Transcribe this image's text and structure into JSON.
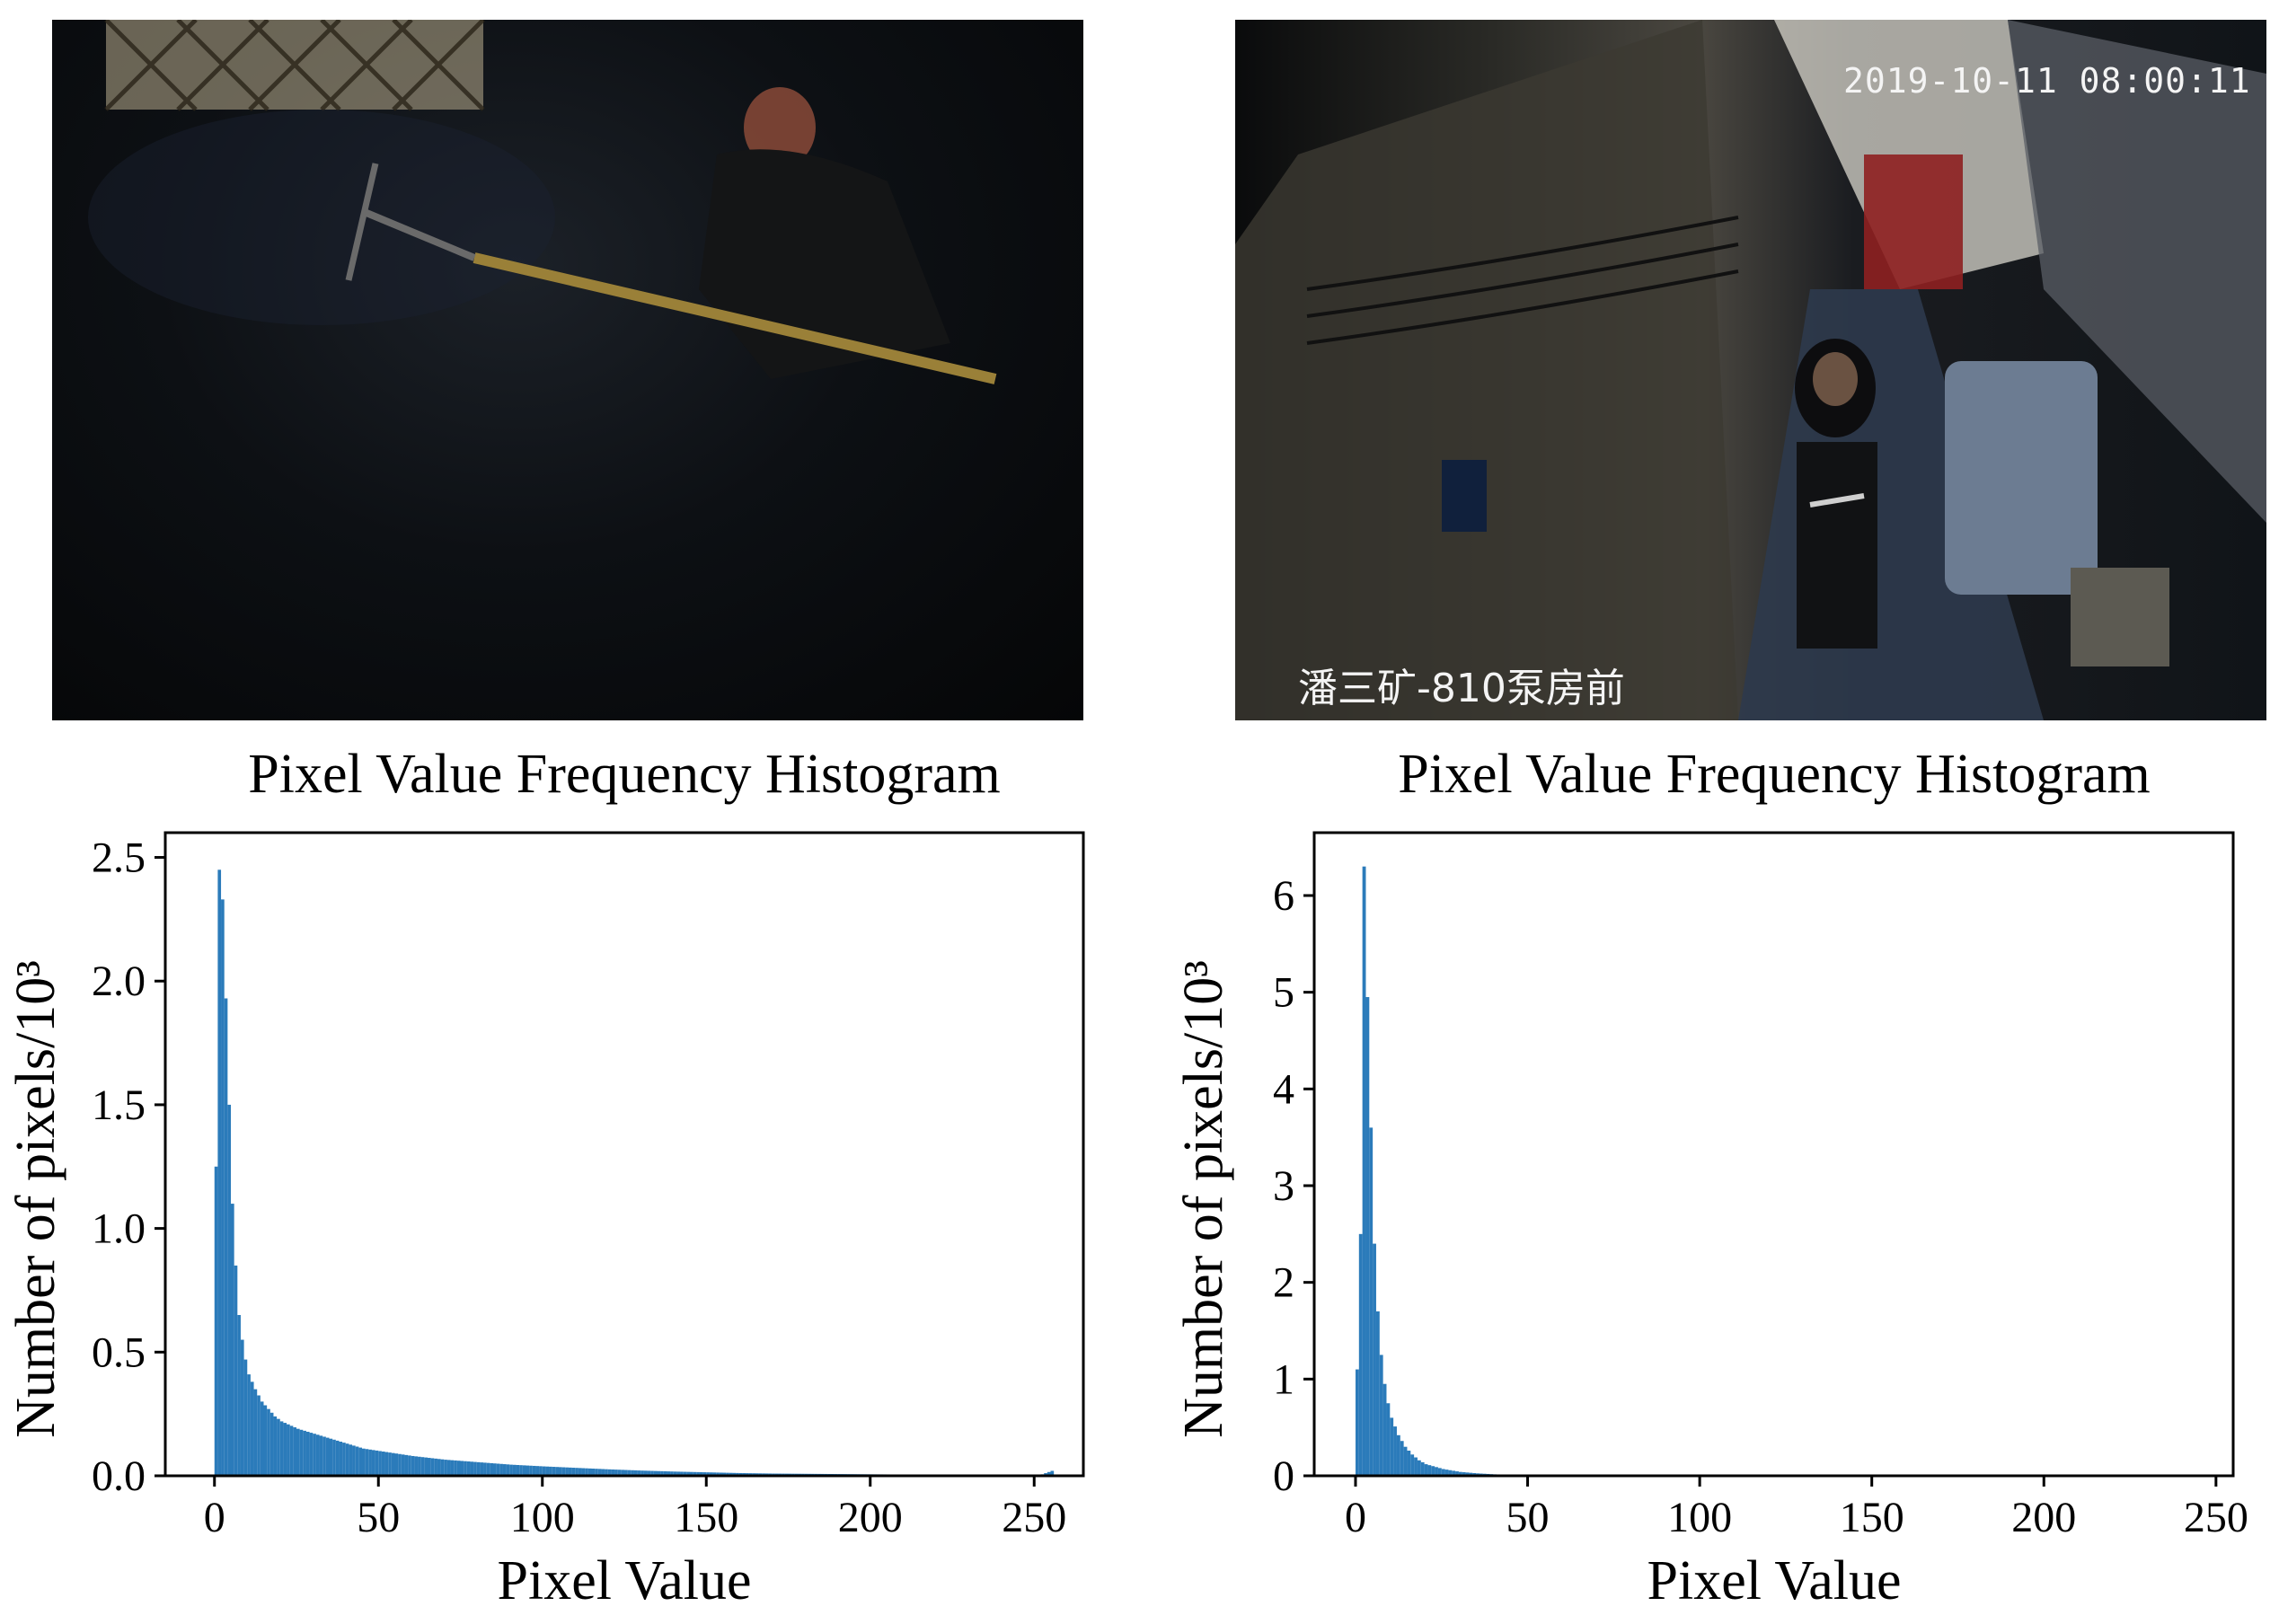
{
  "photos": {
    "left": {
      "scene": "coal miner with pickaxe in dark coal seam"
    },
    "right": {
      "scene": "lit mine tunnel with worker and equipment",
      "timestamp": "2019-10-11 08:00:11",
      "location_caption": "潘三矿-810泵房前"
    }
  },
  "chart_data": [
    {
      "type": "bar",
      "title": "Pixel Value Frequency Histogram",
      "xlabel": "Pixel Value",
      "ylabel": "Number of pixels/10³",
      "xlim": [
        -15,
        265
      ],
      "ylim": [
        0,
        2.6
      ],
      "xticks": [
        0,
        50,
        100,
        150,
        200,
        250
      ],
      "yticks": [
        0.0,
        0.5,
        1.0,
        1.5,
        2.0,
        2.5
      ],
      "ytick_labels": [
        "0.0",
        "0.5",
        "1.0",
        "1.5",
        "2.0",
        "2.5"
      ],
      "bar_color": "#2b7bba",
      "grid": false,
      "x": [
        0,
        1,
        2,
        3,
        4,
        5,
        6,
        7,
        8,
        9,
        10,
        12,
        14,
        16,
        18,
        20,
        25,
        30,
        35,
        40,
        45,
        50,
        60,
        70,
        80,
        90,
        100,
        110,
        120,
        130,
        140,
        150,
        160,
        170,
        180,
        190,
        200,
        210,
        220,
        230,
        240,
        250,
        252,
        255
      ],
      "values": [
        1.25,
        2.45,
        2.33,
        1.93,
        1.5,
        1.1,
        0.85,
        0.65,
        0.55,
        0.47,
        0.41,
        0.35,
        0.3,
        0.27,
        0.24,
        0.22,
        0.19,
        0.17,
        0.15,
        0.13,
        0.11,
        0.1,
        0.08,
        0.065,
        0.055,
        0.045,
        0.038,
        0.032,
        0.026,
        0.021,
        0.017,
        0.014,
        0.011,
        0.009,
        0.008,
        0.007,
        0.006,
        0.005,
        0.005,
        0.004,
        0.004,
        0.004,
        0.006,
        0.02
      ]
    },
    {
      "type": "bar",
      "title": "Pixel Value Frequency Histogram",
      "xlabel": "Pixel Value",
      "ylabel": "Number of pixels/10³",
      "xlim": [
        -12,
        255
      ],
      "ylim": [
        0,
        6.65
      ],
      "xticks": [
        0,
        50,
        100,
        150,
        200,
        250
      ],
      "yticks": [
        0,
        1,
        2,
        3,
        4,
        5,
        6
      ],
      "ytick_labels": [
        "0",
        "1",
        "2",
        "3",
        "4",
        "5",
        "6"
      ],
      "bar_color": "#2b7bba",
      "grid": false,
      "x": [
        0,
        1,
        2,
        3,
        4,
        5,
        6,
        7,
        8,
        9,
        10,
        12,
        14,
        16,
        18,
        20,
        25,
        30,
        35,
        40,
        45,
        50,
        60
      ],
      "values": [
        1.1,
        2.5,
        6.3,
        4.95,
        3.6,
        2.4,
        1.7,
        1.25,
        0.95,
        0.75,
        0.6,
        0.42,
        0.3,
        0.22,
        0.16,
        0.12,
        0.07,
        0.04,
        0.025,
        0.015,
        0.01,
        0.006,
        0.003
      ]
    }
  ]
}
